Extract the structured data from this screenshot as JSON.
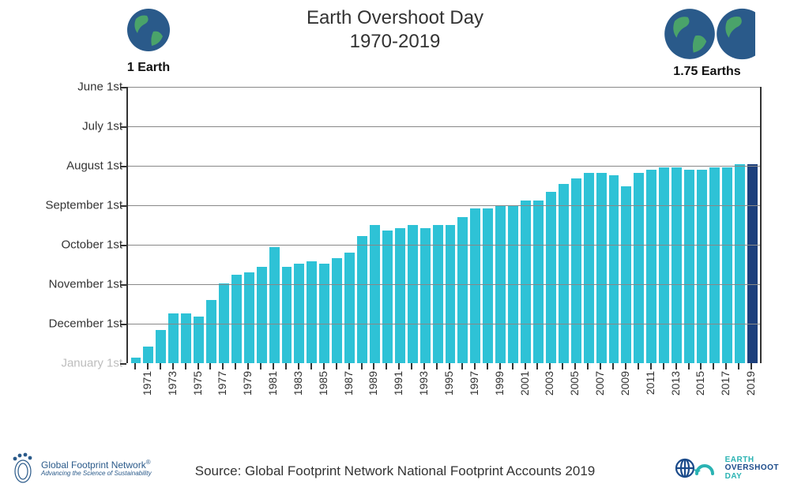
{
  "title_line1": "Earth Overshoot Day",
  "title_line2": "1970-2019",
  "earth_left_label": "1 Earth",
  "earth_right_label": "1.75 Earths",
  "source": "Source: Global Footprint Network National Footprint Accounts 2019",
  "logo_left_name": "Global Footprint Network",
  "logo_left_sub": "Advancing the Science of Sustainability",
  "logo_right_l1": "EARTH",
  "logo_right_l2": "OVERSHOOT",
  "logo_right_l3": "DAY",
  "chart": {
    "type": "bar",
    "y_axis": {
      "labels": [
        "June 1st",
        "July 1st",
        "August 1st",
        "September 1st",
        "October 1st",
        "November 1st",
        "December 1st",
        "January 1st"
      ],
      "positions_pct": [
        0,
        14.3,
        28.6,
        42.9,
        57.1,
        71.4,
        85.7,
        100
      ],
      "muted_index": 7
    },
    "grid_positions_pct": [
      0,
      14.3,
      28.6,
      42.9,
      57.1,
      71.4,
      85.7
    ],
    "grid_color": "#888888",
    "axis_color": "#333333",
    "bar_color": "#2ec2d6",
    "bar_highlight_color": "#1c3f7c",
    "background_color": "#ffffff",
    "years": [
      1970,
      1971,
      1972,
      1973,
      1974,
      1975,
      1976,
      1977,
      1978,
      1979,
      1980,
      1981,
      1982,
      1983,
      1984,
      1985,
      1986,
      1987,
      1988,
      1989,
      1990,
      1991,
      1992,
      1993,
      1994,
      1995,
      1996,
      1997,
      1998,
      1999,
      2000,
      2001,
      2002,
      2003,
      2004,
      2005,
      2006,
      2007,
      2008,
      2009,
      2010,
      2011,
      2012,
      2013,
      2014,
      2015,
      2016,
      2017,
      2018,
      2019
    ],
    "heights_pct": [
      2,
      6,
      12,
      18,
      18,
      17,
      23,
      29,
      32,
      33,
      35,
      42,
      35,
      36,
      37,
      36,
      38,
      40,
      46,
      50,
      48,
      49,
      50,
      49,
      50,
      50,
      53,
      56,
      56,
      57,
      57,
      59,
      59,
      62,
      65,
      67,
      69,
      69,
      68,
      64,
      69,
      70,
      71,
      71,
      70,
      70,
      71,
      71,
      72,
      72
    ],
    "highlight_index": 49,
    "x_label_interval": 2,
    "x_label_start_index": 1
  },
  "globe": {
    "ocean": "#2a5a8a",
    "land": "#4aa36a"
  }
}
